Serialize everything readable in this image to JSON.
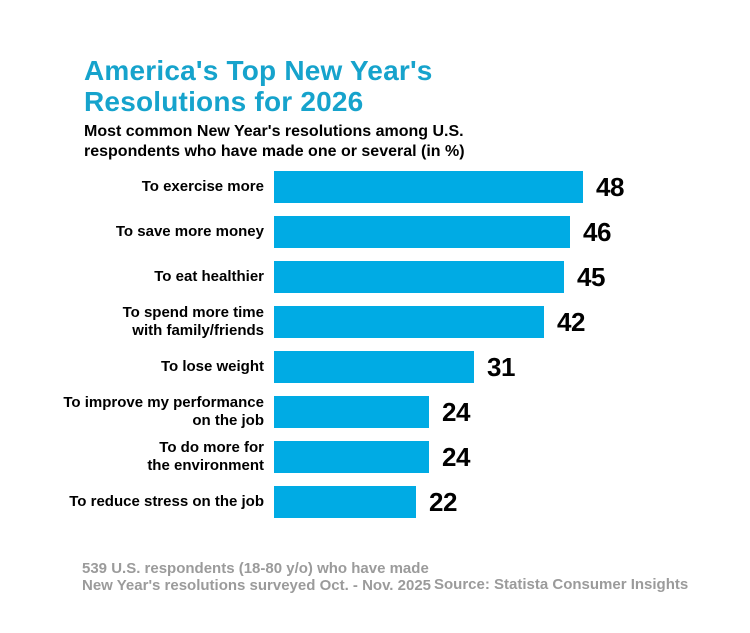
{
  "header": {
    "title_line1": "America's Top New Year's",
    "title_line2": "Resolutions for 2026",
    "subtitle_line1": "Most common New Year's resolutions among U.S.",
    "subtitle_line2": "respondents who have made one or several (in %)"
  },
  "chart_data": {
    "type": "bar",
    "orientation": "horizontal",
    "title": "America's Top New Year's Resolutions for 2026",
    "subtitle": "Most common New Year's resolutions among U.S. respondents who have made one or several (in %)",
    "categories": [
      "To exercise more",
      "To save more money",
      "To eat healthier",
      "To spend more time\nwith family/friends",
      "To lose weight",
      "To improve my performance\non the job",
      "To do more for\nthe environment",
      "To reduce stress on the job"
    ],
    "values": [
      48,
      46,
      45,
      42,
      31,
      24,
      24,
      22
    ],
    "unit": "%",
    "xlabel": "",
    "ylabel": "",
    "xlim": [
      0,
      48
    ],
    "grid": false,
    "legend": false,
    "bar_color": "#00abe4"
  },
  "footer": {
    "note_line1": "539 U.S. respondents (18-80 y/o) who have made",
    "note_line2": "New Year's resolutions surveyed Oct. - Nov. 2025",
    "source": "Source: Statista Consumer Insights"
  },
  "colors": {
    "title": "#16a3cc",
    "bar": "#00abe4",
    "text": "#000000",
    "muted": "#9b9b9b",
    "background": "#ffffff"
  }
}
